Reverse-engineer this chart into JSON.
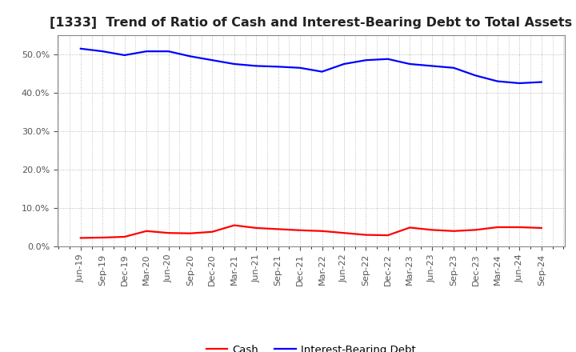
{
  "title": "[1333]  Trend of Ratio of Cash and Interest-Bearing Debt to Total Assets",
  "x_labels": [
    "Jun-19",
    "Sep-19",
    "Dec-19",
    "Mar-20",
    "Jun-20",
    "Sep-20",
    "Dec-20",
    "Mar-21",
    "Jun-21",
    "Sep-21",
    "Dec-21",
    "Mar-22",
    "Jun-22",
    "Sep-22",
    "Dec-22",
    "Mar-23",
    "Jun-23",
    "Sep-23",
    "Dec-23",
    "Mar-24",
    "Jun-24",
    "Sep-24"
  ],
  "cash": [
    2.2,
    2.3,
    2.5,
    4.0,
    3.5,
    3.4,
    3.8,
    5.5,
    4.8,
    4.5,
    4.2,
    4.0,
    3.5,
    3.0,
    2.9,
    4.9,
    4.3,
    4.0,
    4.3,
    5.0,
    5.0,
    4.8
  ],
  "debt": [
    51.5,
    50.8,
    49.8,
    50.8,
    50.8,
    49.5,
    48.5,
    47.5,
    47.0,
    46.8,
    46.5,
    45.5,
    47.5,
    48.5,
    48.8,
    47.5,
    47.0,
    46.5,
    44.5,
    43.0,
    42.5,
    42.8
  ],
  "cash_color": "#FF0000",
  "debt_color": "#0000FF",
  "background_color": "#FFFFFF",
  "plot_bg_color": "#FFFFFF",
  "grid_color": "#AAAAAA",
  "ylim": [
    0,
    55
  ],
  "yticks": [
    0.0,
    10.0,
    20.0,
    30.0,
    40.0,
    50.0
  ],
  "legend_cash": "Cash",
  "legend_debt": "Interest-Bearing Debt",
  "title_fontsize": 11.5,
  "tick_fontsize": 8.0,
  "legend_fontsize": 9.5,
  "line_width": 1.6
}
